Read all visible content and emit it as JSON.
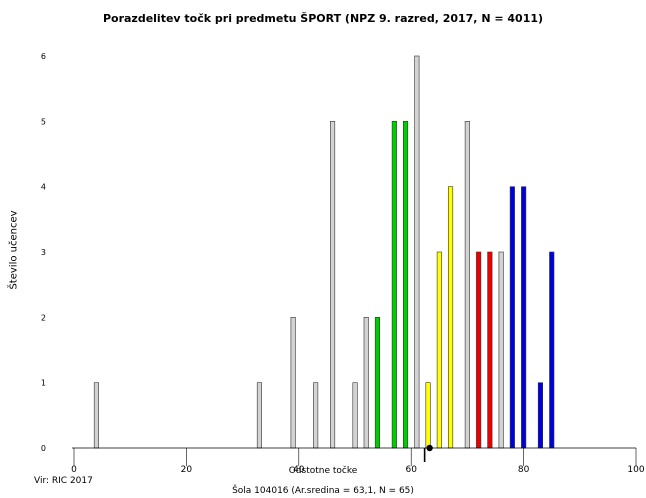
{
  "chart_data": {
    "type": "bar",
    "title": "Porazdelitev točk pri predmetu ŠPORT (NPZ 9. razred, 2017, N = 4011)",
    "xlabel": "Odstotne točke",
    "ylabel": "Število učencev",
    "source": "Vir: RIC 2017",
    "subtitle": "Šola 104016 (Ar.sredina = 63,1, N = 65)",
    "xlim": [
      0,
      100
    ],
    "ylim": [
      0,
      6
    ],
    "xticks": [
      "0",
      "20",
      "40",
      "60",
      "80",
      "100"
    ],
    "yticks": [
      "0",
      "1",
      "2",
      "3",
      "4",
      "5",
      "6"
    ],
    "mean": 63.1,
    "colors": {
      "gray": "#d3d3d3",
      "green": "#00cc00",
      "yellow": "#ffff00",
      "red": "#ee0000",
      "blue": "#0000dd",
      "mean_marker": "#000000"
    },
    "bars": [
      {
        "x": 4,
        "value": 1,
        "color": "gray"
      },
      {
        "x": 33,
        "value": 1,
        "color": "gray"
      },
      {
        "x": 39,
        "value": 2,
        "color": "gray"
      },
      {
        "x": 43,
        "value": 1,
        "color": "gray"
      },
      {
        "x": 46,
        "value": 5,
        "color": "gray"
      },
      {
        "x": 50,
        "value": 1,
        "color": "gray"
      },
      {
        "x": 52,
        "value": 2,
        "color": "gray"
      },
      {
        "x": 54,
        "value": 2,
        "color": "green"
      },
      {
        "x": 57,
        "value": 5,
        "color": "green"
      },
      {
        "x": 59,
        "value": 5,
        "color": "green"
      },
      {
        "x": 61,
        "value": 6,
        "color": "gray"
      },
      {
        "x": 63,
        "value": 1,
        "color": "yellow"
      },
      {
        "x": 65,
        "value": 3,
        "color": "yellow"
      },
      {
        "x": 67,
        "value": 4,
        "color": "yellow"
      },
      {
        "x": 70,
        "value": 5,
        "color": "gray"
      },
      {
        "x": 72,
        "value": 3,
        "color": "red"
      },
      {
        "x": 74,
        "value": 3,
        "color": "red"
      },
      {
        "x": 76,
        "value": 3,
        "color": "gray"
      },
      {
        "x": 78,
        "value": 4,
        "color": "blue"
      },
      {
        "x": 80,
        "value": 4,
        "color": "blue"
      },
      {
        "x": 83,
        "value": 1,
        "color": "blue"
      },
      {
        "x": 85,
        "value": 3,
        "color": "blue"
      }
    ]
  }
}
